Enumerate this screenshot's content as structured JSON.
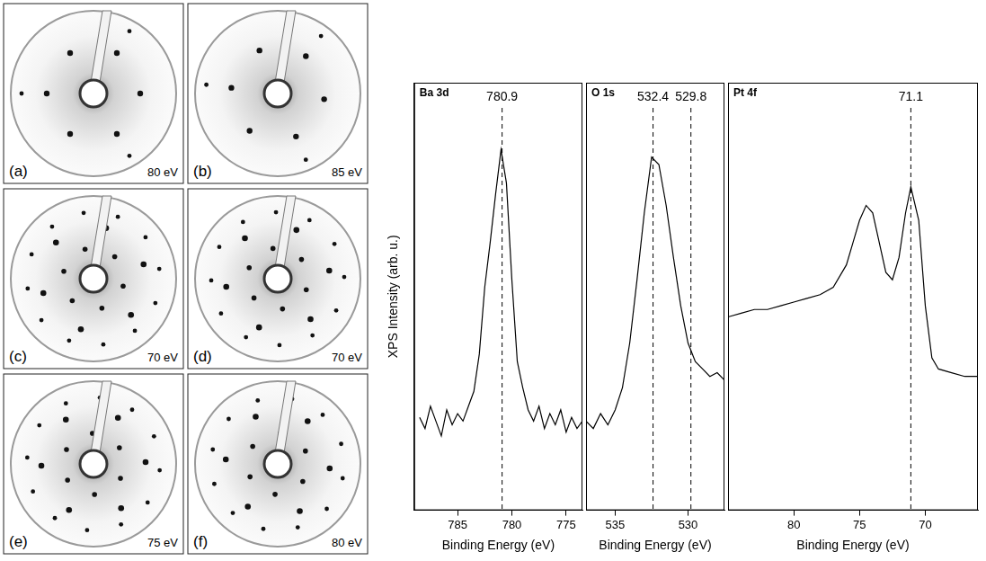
{
  "leed_panels": [
    {
      "label": "(a)",
      "energy": "80 eV"
    },
    {
      "label": "(b)",
      "energy": "85 eV"
    },
    {
      "label": "(c)",
      "energy": "70 eV"
    },
    {
      "label": "(d)",
      "energy": "70 eV"
    },
    {
      "label": "(e)",
      "energy": "75 eV"
    },
    {
      "label": "(f)",
      "energy": "80 eV"
    }
  ],
  "chart_data": [
    {
      "type": "line",
      "title": "Ba 3d",
      "ylabel": "XPS Intensity (arb. u.)",
      "xlabel": "Binding Energy (eV)",
      "x": [
        788.5,
        788,
        787.5,
        787,
        786.5,
        786,
        785.5,
        785,
        784.5,
        784,
        783.5,
        783,
        782.5,
        782,
        781.5,
        781,
        780.5,
        780,
        779.5,
        779,
        778.5,
        778,
        777.5,
        777,
        776.5,
        776,
        775.5,
        775,
        774.5,
        774,
        773.5
      ],
      "values": [
        25,
        22,
        28,
        24,
        20,
        27,
        23,
        26,
        24,
        28,
        32,
        42,
        60,
        72,
        85,
        97,
        88,
        62,
        40,
        33,
        27,
        24,
        28,
        22,
        26,
        23,
        27,
        21,
        25,
        22,
        24
      ],
      "color": "#000000",
      "xlim": [
        789,
        773.5
      ],
      "xticks": [
        785,
        780,
        775
      ],
      "ylim": [
        0,
        115
      ],
      "tick_labels": "x",
      "grid": false,
      "annotations": [
        {
          "x": 780.9,
          "label": "780.9"
        }
      ]
    },
    {
      "type": "line",
      "title": "O 1s",
      "xlabel": "Binding Energy (eV)",
      "x": [
        537,
        536.5,
        536,
        535.5,
        535,
        534.5,
        534,
        533.5,
        533,
        532.5,
        532,
        531.5,
        531,
        530.5,
        530,
        529.5,
        529,
        528.5,
        528,
        527.5
      ],
      "values": [
        24,
        22,
        26,
        23,
        27,
        33,
        45,
        62,
        80,
        95,
        93,
        82,
        68,
        55,
        45,
        40,
        38,
        36,
        37,
        35
      ],
      "color": "#000000",
      "xlim": [
        537,
        527.5
      ],
      "xticks": [
        535,
        530
      ],
      "ylim": [
        0,
        115
      ],
      "tick_labels": "x",
      "grid": false,
      "annotations": [
        {
          "x": 532.4,
          "label": "532.4"
        },
        {
          "x": 529.8,
          "label": "529.8"
        }
      ]
    },
    {
      "type": "line",
      "title": "Pt 4f",
      "xlabel": "Binding Energy (eV)",
      "x": [
        85,
        84,
        83,
        82,
        81,
        80,
        79,
        78,
        77,
        76,
        75.5,
        75,
        74.5,
        74,
        73.5,
        73,
        72.5,
        72,
        71.5,
        71.1,
        70.5,
        70,
        69.5,
        69,
        68,
        67,
        66
      ],
      "values": [
        52,
        53,
        54,
        54,
        55,
        56,
        57,
        58,
        60,
        66,
        72,
        78,
        82,
        80,
        72,
        64,
        62,
        68,
        80,
        87,
        78,
        55,
        41,
        38,
        37,
        36,
        36
      ],
      "color": "#000000",
      "xlim": [
        85,
        66
      ],
      "xticks": [
        80,
        75,
        70
      ],
      "ylim": [
        0,
        115
      ],
      "tick_labels": "x",
      "grid": false,
      "annotations": [
        {
          "x": 71.1,
          "label": "71.1"
        }
      ]
    }
  ]
}
